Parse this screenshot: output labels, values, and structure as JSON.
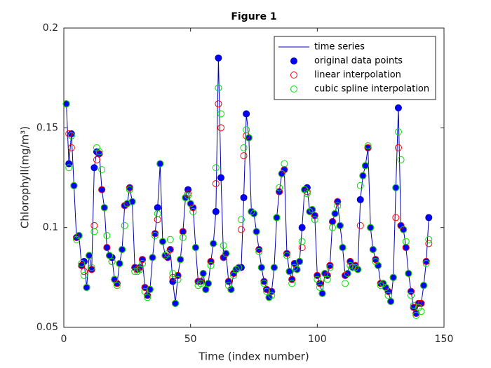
{
  "chart_data": {
    "type": "line",
    "title": "Figure 1",
    "xlabel": "Time (index number)",
    "ylabel": "Chlorophyll(mg/m³)",
    "xlim": [
      0,
      150
    ],
    "xticks": [
      0,
      50,
      100,
      150
    ],
    "ylim": [
      0.05,
      0.2
    ],
    "yticks": [
      0.05,
      0.1,
      0.15,
      0.2
    ],
    "legend": "upper right",
    "x": [
      1,
      2,
      3,
      4,
      5,
      6,
      7,
      8,
      9,
      10,
      11,
      12,
      13,
      14,
      15,
      16,
      17,
      18,
      19,
      20,
      21,
      22,
      23,
      24,
      25,
      26,
      27,
      28,
      29,
      30,
      31,
      32,
      33,
      34,
      35,
      36,
      37,
      38,
      39,
      40,
      41,
      42,
      43,
      44,
      45,
      46,
      47,
      48,
      49,
      50,
      51,
      52,
      53,
      54,
      55,
      56,
      57,
      58,
      59,
      60,
      61,
      62,
      63,
      64,
      65,
      66,
      67,
      68,
      69,
      70,
      71,
      72,
      73,
      74,
      75,
      76,
      77,
      78,
      79,
      80,
      81,
      82,
      83,
      84,
      85,
      86,
      87,
      88,
      89,
      90,
      91,
      92,
      93,
      94,
      95,
      96,
      97,
      98,
      99,
      100,
      101,
      102,
      103,
      104,
      105,
      106,
      107,
      108,
      109,
      110,
      111,
      112,
      113,
      114,
      115,
      116,
      117,
      118,
      119,
      120,
      121,
      122,
      123,
      124,
      125,
      126,
      127,
      128,
      129,
      130,
      131,
      132,
      133,
      134,
      135,
      136,
      137,
      138,
      139,
      140,
      141,
      142,
      143,
      144
    ],
    "series": [
      {
        "name": "time series",
        "color": "#0000b4",
        "style": "line",
        "values": [
          0.162,
          0.132,
          0.147,
          0.121,
          0.095,
          0.096,
          0.081,
          0.083,
          0.07,
          0.086,
          0.079,
          0.13,
          0.138,
          0.137,
          0.119,
          0.11,
          0.09,
          0.086,
          0.085,
          0.074,
          0.072,
          0.082,
          0.089,
          0.111,
          0.112,
          0.12,
          0.113,
          0.08,
          0.079,
          0.08,
          0.084,
          0.07,
          0.066,
          0.069,
          0.085,
          0.097,
          0.11,
          0.132,
          0.093,
          0.086,
          0.085,
          0.089,
          0.073,
          0.062,
          0.076,
          0.084,
          0.098,
          0.115,
          0.119,
          0.112,
          0.11,
          0.09,
          0.073,
          0.073,
          0.077,
          0.069,
          0.072,
          0.083,
          0.092,
          0.108,
          0.185,
          0.125,
          0.085,
          0.087,
          0.073,
          0.069,
          0.077,
          0.079,
          0.08,
          0.08,
          0.115,
          0.157,
          0.145,
          0.108,
          0.107,
          0.098,
          0.089,
          0.08,
          0.073,
          0.069,
          0.065,
          0.068,
          0.08,
          0.105,
          0.118,
          0.127,
          0.129,
          0.087,
          0.078,
          0.074,
          0.082,
          0.079,
          0.083,
          0.1,
          0.119,
          0.12,
          0.108,
          0.109,
          0.106,
          0.076,
          0.072,
          0.067,
          0.077,
          0.076,
          0.081,
          0.103,
          0.107,
          0.113,
          0.101,
          0.09,
          0.076,
          0.077,
          0.083,
          0.08,
          0.081,
          0.079,
          0.114,
          0.126,
          0.131,
          0.14,
          0.1,
          0.089,
          0.084,
          0.081,
          0.072,
          0.072,
          0.07,
          0.068,
          0.063,
          0.075,
          0.12,
          0.16,
          0.101,
          0.099,
          0.09,
          0.077,
          0.068,
          0.06,
          0.057,
          0.062,
          0.062,
          0.071,
          0.083,
          0.105
        ]
      },
      {
        "name": "original data points",
        "color": "#0000ff",
        "edge": "#0000b4",
        "style": "filled-circle",
        "values": [
          0.162,
          0.132,
          0.147,
          0.121,
          0.095,
          0.096,
          0.081,
          0.083,
          0.07,
          0.086,
          0.079,
          0.13,
          0.138,
          0.137,
          0.119,
          0.11,
          0.09,
          0.086,
          0.085,
          0.074,
          0.072,
          0.082,
          0.089,
          0.111,
          0.112,
          0.12,
          0.113,
          0.08,
          0.079,
          0.08,
          0.084,
          0.07,
          0.066,
          0.069,
          0.085,
          0.097,
          0.11,
          0.132,
          0.093,
          0.086,
          0.085,
          0.089,
          0.073,
          0.062,
          0.076,
          0.084,
          0.098,
          0.115,
          0.119,
          0.112,
          0.11,
          0.09,
          0.073,
          0.073,
          0.077,
          0.069,
          0.072,
          0.083,
          0.092,
          0.108,
          0.185,
          0.125,
          0.085,
          0.087,
          0.073,
          0.069,
          0.077,
          0.079,
          0.08,
          0.08,
          0.115,
          0.157,
          0.145,
          0.108,
          0.107,
          0.098,
          0.089,
          0.08,
          0.073,
          0.069,
          0.065,
          0.068,
          0.08,
          0.105,
          0.118,
          0.127,
          0.129,
          0.087,
          0.078,
          0.074,
          0.082,
          0.079,
          0.083,
          0.1,
          0.119,
          0.12,
          0.108,
          0.109,
          0.106,
          0.076,
          0.072,
          0.067,
          0.077,
          0.076,
          0.081,
          0.103,
          0.107,
          0.113,
          0.101,
          0.09,
          0.076,
          0.077,
          0.083,
          0.08,
          0.081,
          0.079,
          0.114,
          0.126,
          0.131,
          0.14,
          0.1,
          0.089,
          0.084,
          0.081,
          0.072,
          0.072,
          0.07,
          0.068,
          0.063,
          0.075,
          0.12,
          0.16,
          0.101,
          0.099,
          0.09,
          0.077,
          0.068,
          0.06,
          0.057,
          0.062,
          0.062,
          0.071,
          0.083,
          0.105
        ]
      },
      {
        "name": "linear interpolation",
        "color": "#ff0000",
        "style": "circle",
        "values": [
          0.162,
          0.147,
          0.14,
          0.121,
          0.095,
          0.096,
          0.081,
          0.078,
          0.07,
          0.086,
          0.079,
          0.101,
          0.134,
          0.137,
          0.119,
          0.11,
          0.09,
          0.086,
          0.083,
          0.074,
          0.072,
          0.082,
          0.089,
          0.111,
          0.112,
          0.12,
          0.113,
          0.08,
          0.079,
          0.08,
          0.084,
          0.07,
          0.066,
          0.069,
          0.085,
          0.097,
          0.104,
          0.132,
          0.093,
          0.086,
          0.085,
          0.089,
          0.075,
          0.062,
          0.076,
          0.084,
          0.098,
          0.115,
          0.117,
          0.112,
          0.11,
          0.09,
          0.073,
          0.073,
          0.077,
          0.069,
          0.072,
          0.083,
          0.092,
          0.122,
          0.162,
          0.15,
          0.085,
          0.087,
          0.073,
          0.069,
          0.077,
          0.079,
          0.08,
          0.099,
          0.136,
          0.146,
          0.145,
          0.108,
          0.107,
          0.098,
          0.089,
          0.08,
          0.073,
          0.069,
          0.065,
          0.068,
          0.08,
          0.105,
          0.118,
          0.127,
          0.129,
          0.087,
          0.078,
          0.074,
          0.082,
          0.079,
          0.083,
          0.09,
          0.119,
          0.118,
          0.108,
          0.109,
          0.106,
          0.076,
          0.072,
          0.067,
          0.077,
          0.076,
          0.081,
          0.103,
          0.107,
          0.113,
          0.101,
          0.09,
          0.076,
          0.077,
          0.083,
          0.08,
          0.081,
          0.079,
          0.101,
          0.126,
          0.131,
          0.14,
          0.1,
          0.089,
          0.084,
          0.081,
          0.072,
          0.072,
          0.07,
          0.068,
          0.063,
          0.075,
          0.105,
          0.14,
          0.101,
          0.099,
          0.09,
          0.077,
          0.068,
          0.06,
          0.057,
          0.062,
          0.062,
          0.071,
          0.083,
          0.092
        ]
      },
      {
        "name": "cubic spline interpolation",
        "color": "#00e000",
        "style": "circle",
        "values": [
          0.162,
          0.13,
          0.146,
          0.121,
          0.094,
          0.096,
          0.082,
          0.076,
          0.07,
          0.086,
          0.08,
          0.098,
          0.14,
          0.138,
          0.129,
          0.11,
          0.096,
          0.086,
          0.083,
          0.074,
          0.071,
          0.082,
          0.089,
          0.101,
          0.112,
          0.119,
          0.113,
          0.078,
          0.078,
          0.079,
          0.082,
          0.068,
          0.065,
          0.069,
          0.085,
          0.096,
          0.107,
          0.132,
          0.093,
          0.086,
          0.087,
          0.094,
          0.077,
          0.062,
          0.074,
          0.084,
          0.095,
          0.115,
          0.116,
          0.112,
          0.108,
          0.09,
          0.071,
          0.072,
          0.077,
          0.069,
          0.072,
          0.081,
          0.092,
          0.13,
          0.17,
          0.157,
          0.091,
          0.087,
          0.071,
          0.069,
          0.076,
          0.079,
          0.08,
          0.104,
          0.14,
          0.149,
          0.145,
          0.108,
          0.107,
          0.098,
          0.088,
          0.08,
          0.072,
          0.068,
          0.065,
          0.066,
          0.08,
          0.105,
          0.12,
          0.127,
          0.132,
          0.086,
          0.078,
          0.072,
          0.08,
          0.079,
          0.083,
          0.093,
          0.119,
          0.117,
          0.108,
          0.109,
          0.104,
          0.074,
          0.07,
          0.067,
          0.077,
          0.074,
          0.08,
          0.1,
          0.107,
          0.111,
          0.101,
          0.09,
          0.072,
          0.077,
          0.081,
          0.08,
          0.08,
          0.079,
          0.121,
          0.126,
          0.131,
          0.141,
          0.1,
          0.089,
          0.083,
          0.081,
          0.071,
          0.072,
          0.07,
          0.066,
          0.063,
          0.075,
          0.12,
          0.148,
          0.134,
          0.099,
          0.093,
          0.077,
          0.066,
          0.061,
          0.056,
          0.06,
          0.058,
          0.071,
          0.082,
          0.094
        ]
      }
    ]
  }
}
